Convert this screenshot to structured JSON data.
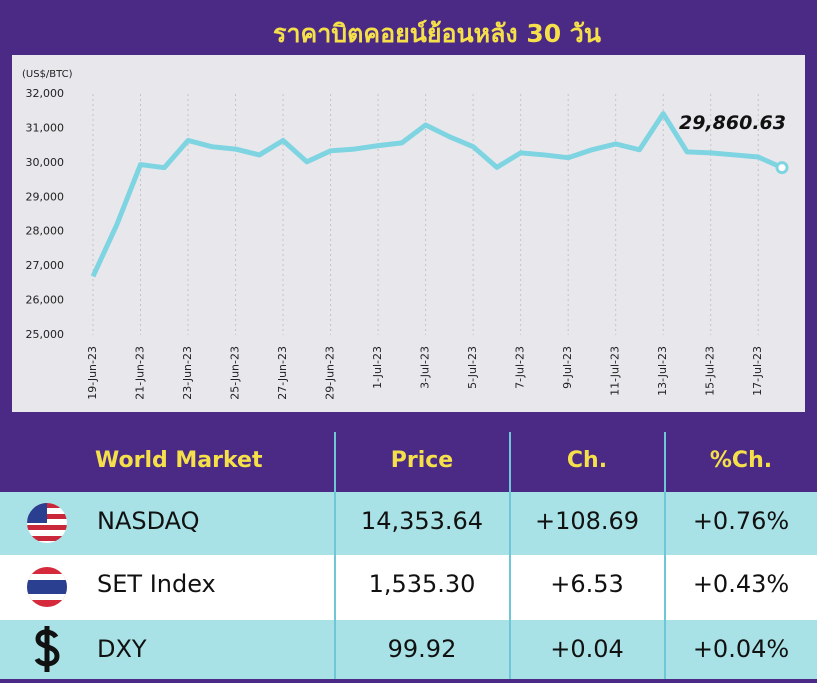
{
  "chart_data": {
    "type": "line",
    "title": "ราคาบิตคอยน์ย้อนหลัง 30 วัน",
    "ylabel": "(US$/BTC)",
    "categories": [
      "19-Jun-23",
      null,
      "21-Jun-23",
      null,
      "23-Jun-23",
      null,
      "25-Jun-23",
      null,
      "27-Jun-23",
      null,
      "29-Jun-23",
      null,
      "1-Jul-23",
      null,
      "3-Jul-23",
      null,
      "5-Jul-23",
      null,
      "7-Jul-23",
      null,
      "9-Jul-23",
      null,
      "11-Jul-23",
      null,
      "13-Jul-23",
      null,
      "15-Jul-23",
      null,
      "17-Jul-23",
      null
    ],
    "series": [
      {
        "name": "BTC",
        "color": "#7fd4e2",
        "values": [
          26700,
          28200,
          29950,
          29860,
          30650,
          30470,
          30400,
          30230,
          30650,
          30030,
          30350,
          30400,
          30500,
          30580,
          31100,
          30760,
          30470,
          29870,
          30290,
          30230,
          30150,
          30380,
          30550,
          30380,
          31430,
          30320,
          30290,
          30230,
          30170,
          29860.63
        ],
        "value_labels": [
          null,
          null,
          null,
          null,
          null,
          null,
          null,
          null,
          null,
          null,
          null,
          null,
          null,
          null,
          null,
          null,
          null,
          null,
          null,
          null,
          null,
          null,
          null,
          null,
          null,
          null,
          null,
          null,
          null,
          "29,860.63"
        ]
      }
    ],
    "ylim": [
      25000,
      32000
    ],
    "yticks": [
      {
        "value": 25000,
        "label": "25,000"
      },
      {
        "value": 26000,
        "label": "26,000"
      },
      {
        "value": 27000,
        "label": "27,000"
      },
      {
        "value": 28000,
        "label": "28,000"
      },
      {
        "value": 29000,
        "label": "29,000"
      },
      {
        "value": 30000,
        "label": "30,000"
      },
      {
        "value": 31000,
        "label": "31,000"
      },
      {
        "value": 32000,
        "label": "32,000"
      }
    ],
    "grid": true
  },
  "table": {
    "header": [
      "World Market",
      "Price",
      "Ch.",
      "%Ch."
    ],
    "rows": [
      [
        "NASDAQ",
        "14,353.64",
        "+108.69",
        "+0.76%"
      ],
      [
        "SET Index",
        "1,535.30",
        "+6.53",
        "+0.43%"
      ],
      [
        "DXY",
        "99.92",
        "+0.04",
        "+0.04%"
      ]
    ]
  }
}
